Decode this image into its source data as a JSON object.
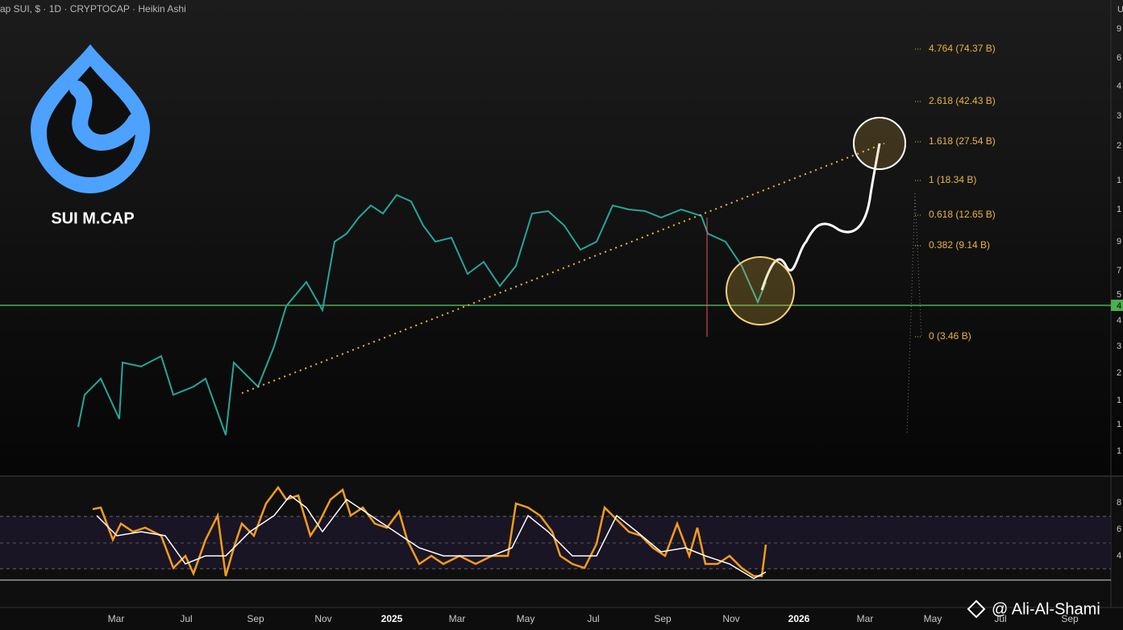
{
  "header": {
    "title": "ap SUI, $ · 1D · CRYPTOCAP · Heikin Ashi",
    "corner": "U"
  },
  "logo": {
    "label": "SUI M.CAP"
  },
  "fib_levels": [
    "4.764 (74.37 B)",
    "2.618 (42.43 B)",
    "1.618 (27.54 B)",
    "1 (18.34 B)",
    "0.618 (12.65 B)",
    "0.382 (9.14 B)",
    "0 (3.46 B)"
  ],
  "price_axis": [
    "9",
    "6",
    "4",
    "3",
    "2",
    "1",
    "1",
    "9",
    "7",
    "5",
    "4",
    "4",
    "3",
    "2",
    "1",
    "1",
    "1"
  ],
  "rsi_axis": [
    "8",
    "6",
    "4"
  ],
  "time_axis": [
    "Mar",
    "Jul",
    "Sep",
    "Nov",
    "2025",
    "Mar",
    "May",
    "Jul",
    "Sep",
    "Nov",
    "2026",
    "Mar",
    "May",
    "Jul",
    "Sep"
  ],
  "watermark": "@ Ali-Al-Shami"
}
